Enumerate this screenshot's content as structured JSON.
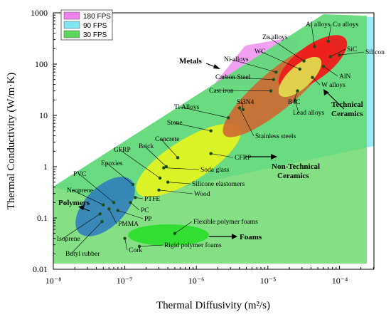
{
  "chart_data": {
    "type": "scatter",
    "xlabel": "Thermal Diffusivity (m²/s)",
    "ylabel": "Thermal Conductivity (W/m·K)",
    "xscale": "log",
    "yscale": "log",
    "xlim": [
      1e-08,
      0.0003
    ],
    "ylim": [
      0.01,
      1000
    ],
    "x_ticks": [
      "10⁻⁸",
      "10⁻⁷",
      "10⁻⁶",
      "10⁻⁵",
      "10⁻⁴"
    ],
    "y_ticks": [
      "0.01",
      "0.1",
      "1",
      "10",
      "100",
      "1000"
    ],
    "legend": {
      "placement": "top-left",
      "entries": [
        {
          "label": "180 FPS",
          "color": "#ee82ee"
        },
        {
          "label": "90 FPS",
          "color": "#7fe5f0"
        },
        {
          "label": "30 FPS",
          "color": "#5cd65c"
        }
      ]
    },
    "regions": [
      {
        "label": "180 FPS",
        "color": "#ee82ee"
      },
      {
        "label": "90 FPS",
        "color": "#7fe5f0"
      },
      {
        "label": "30 FPS",
        "color": "#5cd65c"
      }
    ],
    "categories": [
      {
        "name": "Metals",
        "color": "#e8201c"
      },
      {
        "name": "Technical Ceramics",
        "color": "#d46a2a"
      },
      {
        "name": "Non-Technical Ceramics",
        "color": "#d8f020"
      },
      {
        "name": "Polymers",
        "color": "#2f7fc0"
      },
      {
        "name": "Foams",
        "color": "#30d030"
      }
    ],
    "points": [
      {
        "name": "Al alloys",
        "x": 4.5e-05,
        "y": 220
      },
      {
        "name": "Cu alloys",
        "x": 7e-05,
        "y": 280
      },
      {
        "name": "SiC",
        "x": 7.5e-05,
        "y": 140
      },
      {
        "name": "Silicon",
        "x": 0.0001,
        "y": 150
      },
      {
        "name": "Zn alloys",
        "x": 3.2e-05,
        "y": 115
      },
      {
        "name": "WC",
        "x": 2.8e-05,
        "y": 80
      },
      {
        "name": "Ni alloys",
        "x": 1.3e-05,
        "y": 70
      },
      {
        "name": "AlN",
        "x": 6e-05,
        "y": 90
      },
      {
        "name": "W alloys",
        "x": 4.2e-05,
        "y": 55
      },
      {
        "name": "Carbon Steel",
        "x": 1.2e-05,
        "y": 50
      },
      {
        "name": "Cast iron",
        "x": 1.1e-05,
        "y": 30
      },
      {
        "name": "B4C",
        "x": 2.6e-05,
        "y": 30
      },
      {
        "name": "Lead alloys",
        "x": 2.4e-05,
        "y": 20
      },
      {
        "name": "Si3N4",
        "x": 4.5e-06,
        "y": 13
      },
      {
        "name": "Ti Alloys",
        "x": 2.8e-06,
        "y": 9
      },
      {
        "name": "Stone",
        "x": 1.6e-06,
        "y": 5
      },
      {
        "name": "Stainless steels",
        "x": 4e-06,
        "y": 14
      },
      {
        "name": "Concrete",
        "x": 5.5e-07,
        "y": 1.5
      },
      {
        "name": "Brick",
        "x": 3.8e-07,
        "y": 1.0
      },
      {
        "name": "GFRP",
        "x": 3.1e-07,
        "y": 0.6
      },
      {
        "name": "CFRP",
        "x": 1.6e-06,
        "y": 1.8
      },
      {
        "name": "Soda glass",
        "x": 3.5e-07,
        "y": 0.95
      },
      {
        "name": "Silicone elastomers",
        "x": 4e-07,
        "y": 0.5
      },
      {
        "name": "Epoxies",
        "x": 1.3e-07,
        "y": 0.45
      },
      {
        "name": "Wood",
        "x": 3e-07,
        "y": 0.35
      },
      {
        "name": "PTFE",
        "x": 1.4e-07,
        "y": 0.25
      },
      {
        "name": "PVC",
        "x": 7e-08,
        "y": 0.2
      },
      {
        "name": "Neoprene",
        "x": 5e-08,
        "y": 0.18
      },
      {
        "name": "PC",
        "x": 1.2e-07,
        "y": 0.2
      },
      {
        "name": "PP",
        "x": 8e-08,
        "y": 0.14
      },
      {
        "name": "PMMA",
        "x": 6e-08,
        "y": 0.15
      },
      {
        "name": "Isoprene",
        "x": 4.5e-08,
        "y": 0.12
      },
      {
        "name": "Butyl rubber",
        "x": 4.8e-08,
        "y": 0.085
      },
      {
        "name": "Cork",
        "x": 1e-07,
        "y": 0.04
      },
      {
        "name": "Rigid polymer foams",
        "x": 1.6e-07,
        "y": 0.028
      },
      {
        "name": "Flexible polymer foams",
        "x": 5e-07,
        "y": 0.05
      }
    ]
  }
}
